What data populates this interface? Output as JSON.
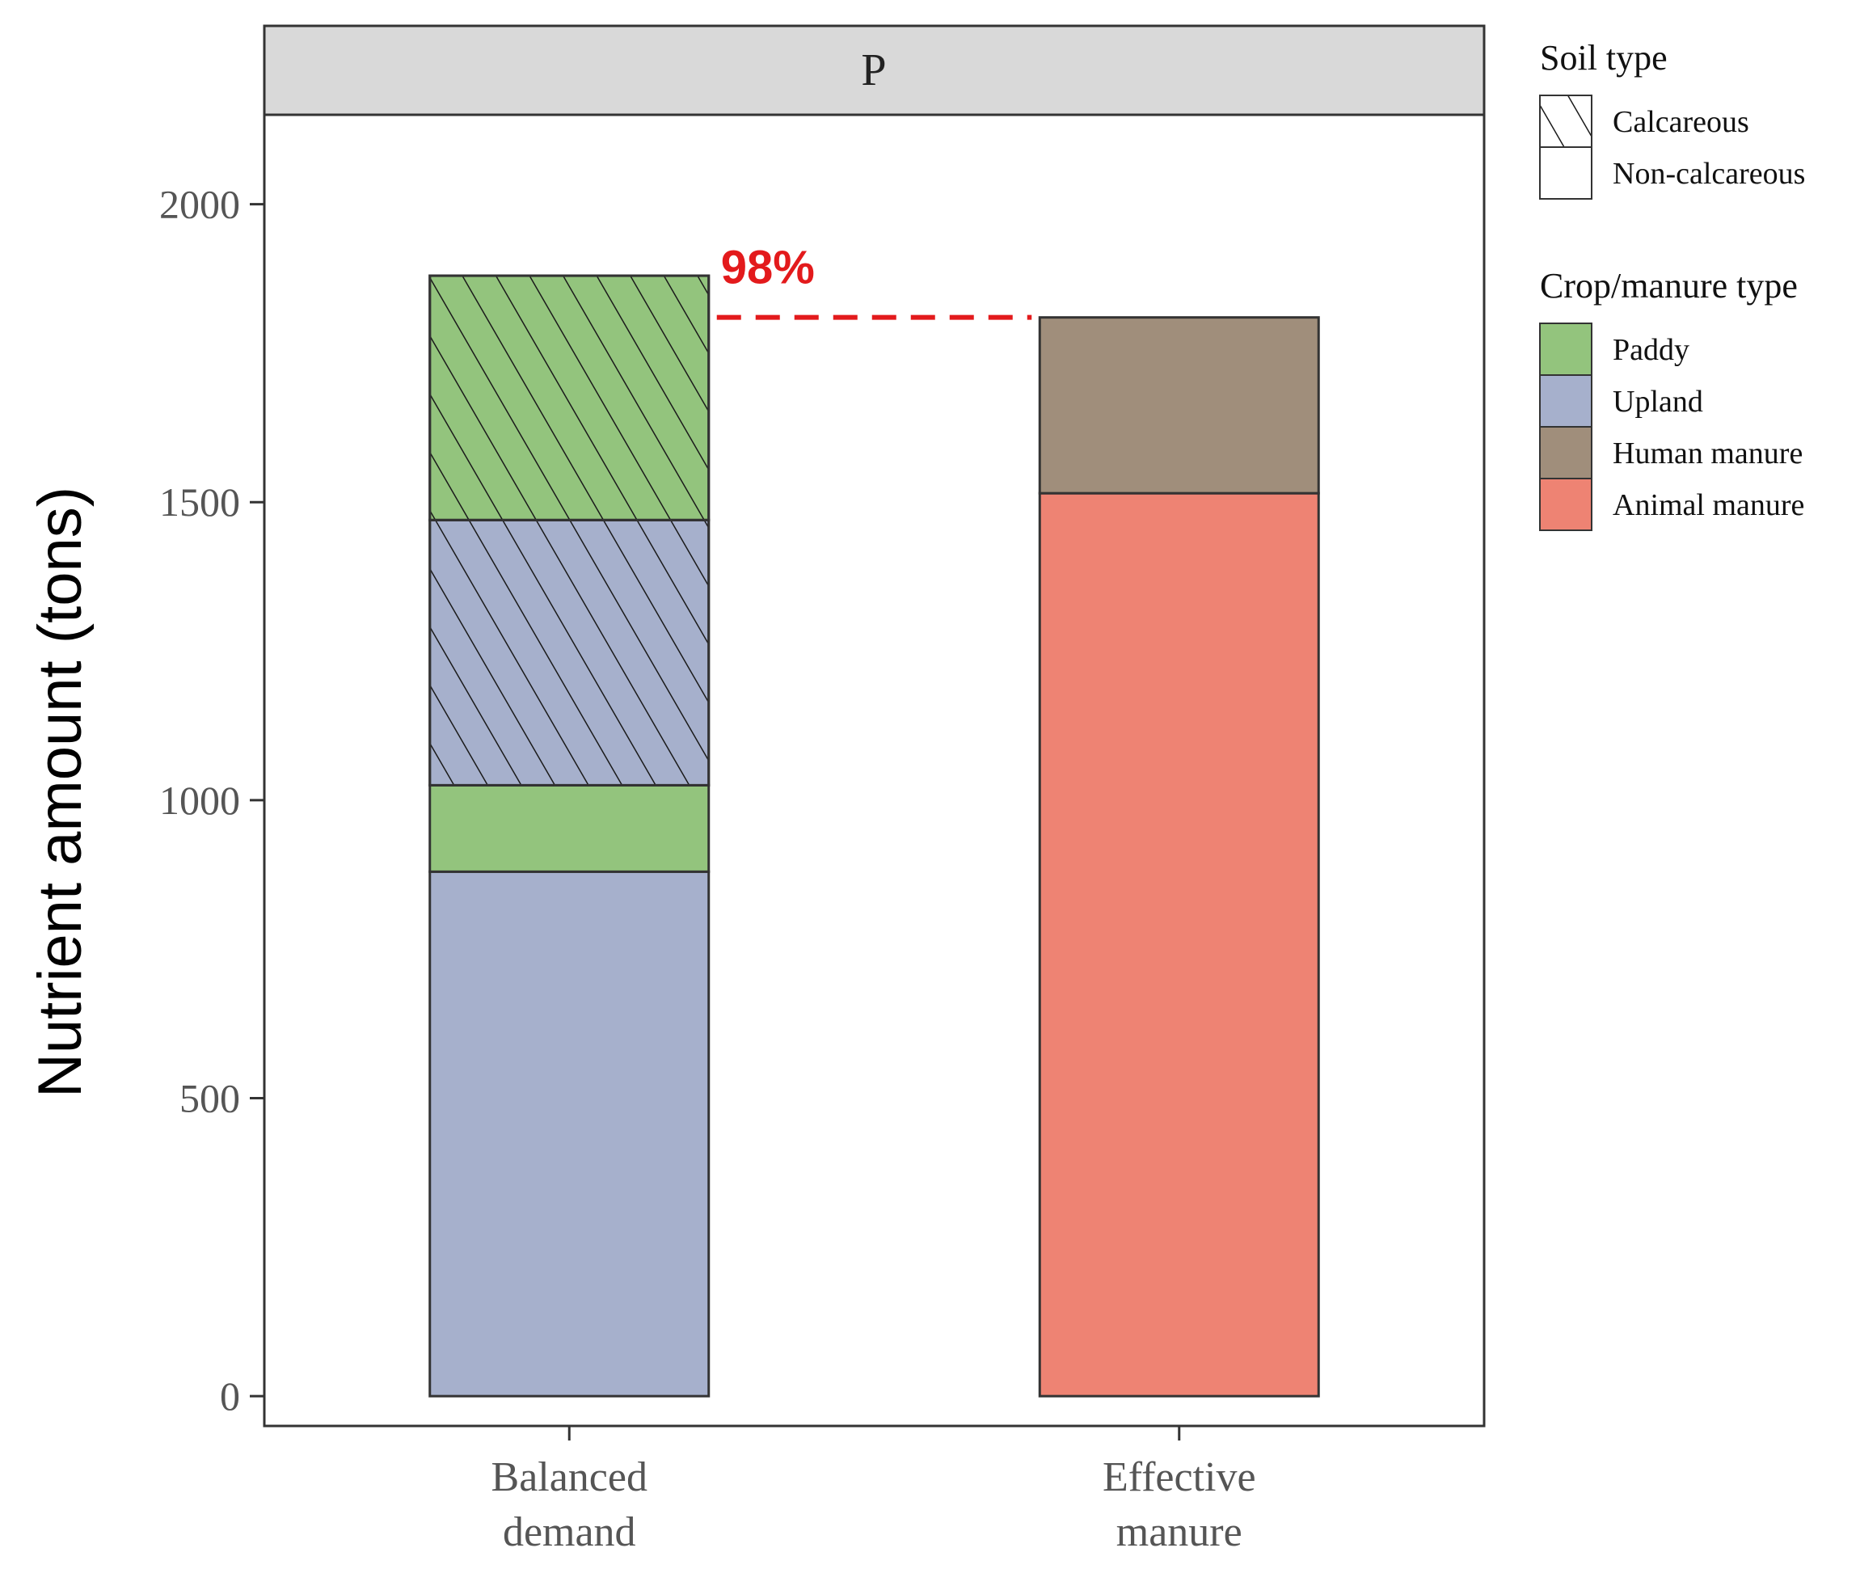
{
  "chart_data": {
    "type": "bar",
    "stacked": true,
    "facet_label": "P",
    "ylabel": "Nutrient amount (tons)",
    "ylim": [
      -50,
      2150
    ],
    "yticks": [
      0,
      500,
      1000,
      1500,
      2000
    ],
    "categories": [
      "Balanced demand",
      "Effective manure"
    ],
    "category_lines": [
      [
        "Balanced",
        "demand"
      ],
      [
        "Effective",
        "manure"
      ]
    ],
    "stacks": [
      {
        "category": "Balanced demand",
        "segments": [
          {
            "crop": "Upland",
            "soil": "Non-calcareous",
            "from": 0,
            "to": 880
          },
          {
            "crop": "Paddy",
            "soil": "Non-calcareous",
            "from": 880,
            "to": 1025
          },
          {
            "crop": "Upland",
            "soil": "Calcareous",
            "from": 1025,
            "to": 1470
          },
          {
            "crop": "Paddy",
            "soil": "Calcareous",
            "from": 1470,
            "to": 1880
          }
        ]
      },
      {
        "category": "Effective manure",
        "segments": [
          {
            "crop": "Animal manure",
            "soil": "Non-calcareous",
            "from": 0,
            "to": 1515
          },
          {
            "crop": "Human manure",
            "soil": "Non-calcareous",
            "from": 1515,
            "to": 1810
          }
        ]
      }
    ],
    "annotation": {
      "text": "98%",
      "y": 1810,
      "color": "#e31a1c"
    },
    "legend": {
      "soil_title": "Soil type",
      "soil_items": [
        {
          "label": "Calcareous",
          "pattern": "hatch"
        },
        {
          "label": "Non-calcareous",
          "pattern": "none"
        }
      ],
      "crop_title": "Crop/manure type",
      "crop_items": [
        {
          "label": "Paddy",
          "color": "#93c47d"
        },
        {
          "label": "Upland",
          "color": "#a6b0cc"
        },
        {
          "label": "Human manure",
          "color": "#a08e7b"
        },
        {
          "label": "Animal manure",
          "color": "#ee8373"
        }
      ],
      "placement": "right"
    },
    "grid": false
  }
}
